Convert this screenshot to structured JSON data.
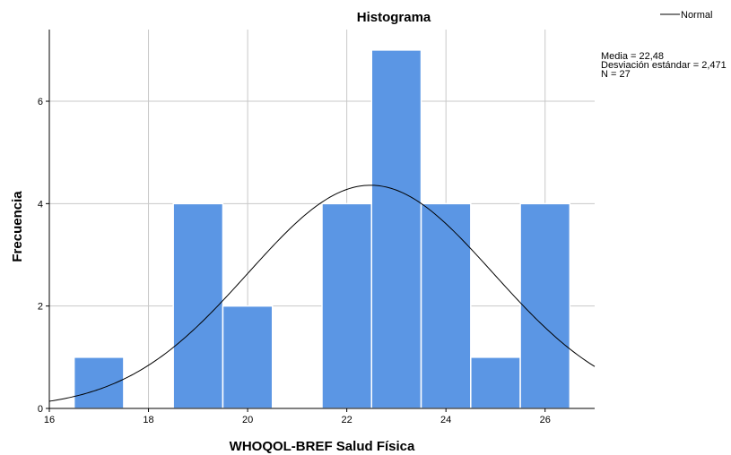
{
  "chart_data": {
    "type": "bar",
    "title": "Histograma",
    "xlabel": "WHOQOL-BREF Salud Física",
    "ylabel": "Frecuencia",
    "xlim": [
      16,
      27
    ],
    "ylim": [
      0,
      7.4
    ],
    "xticks": [
      "16",
      "18",
      "20",
      "22",
      "24",
      "26"
    ],
    "yticks": [
      "0",
      "2",
      "4",
      "6"
    ],
    "bins": [
      {
        "start": 16.5,
        "end": 17.5,
        "value": 1
      },
      {
        "start": 18.5,
        "end": 19.5,
        "value": 4
      },
      {
        "start": 19.5,
        "end": 20.5,
        "value": 2
      },
      {
        "start": 21.5,
        "end": 22.5,
        "value": 4
      },
      {
        "start": 22.5,
        "end": 23.5,
        "value": 7
      },
      {
        "start": 23.5,
        "end": 24.5,
        "value": 4
      },
      {
        "start": 24.5,
        "end": 25.5,
        "value": 1
      },
      {
        "start": 25.5,
        "end": 26.5,
        "value": 4
      }
    ],
    "normal_curve": {
      "mean": 22.48,
      "sd": 2.471,
      "n": 27,
      "bin_width": 1
    },
    "legend": {
      "label": "Normal",
      "position": "top-right"
    },
    "stats": [
      "Media = 22,48",
      "Desviación estándar = 2,471",
      "N = 27"
    ],
    "grid": true,
    "colors": {
      "bar": "#5b96e4",
      "bar_edge": "#ffffff",
      "grid": "#c8c8c8",
      "curve": "#000000",
      "axis": "#000000"
    }
  }
}
